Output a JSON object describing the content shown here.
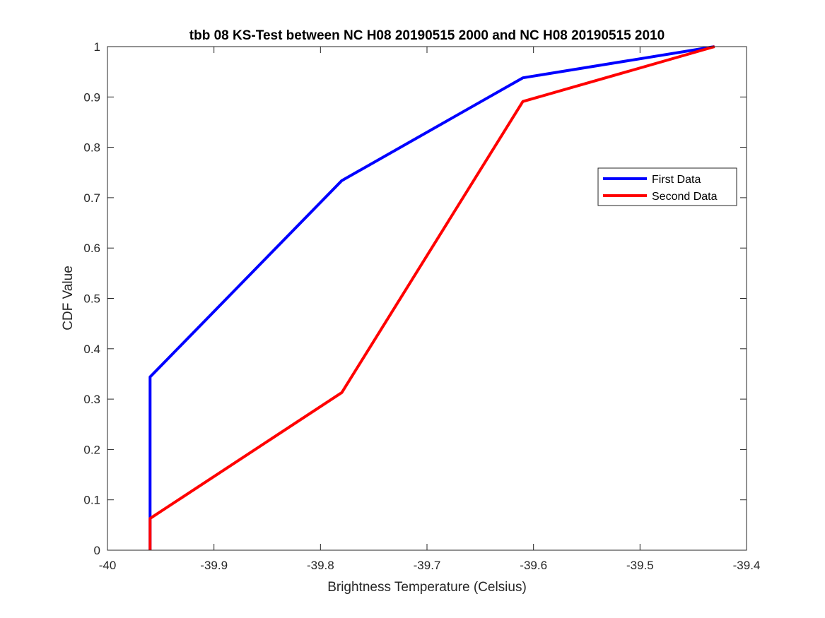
{
  "chart_data": {
    "type": "line",
    "title": "tbb 08 KS-Test between NC H08 20190515 2000 and NC H08 20190515 2010",
    "xlabel": "Brightness Temperature (Celsius)",
    "ylabel": "CDF Value",
    "xlim": [
      -40,
      -39.4
    ],
    "ylim": [
      0,
      1
    ],
    "xticks": [
      -40,
      -39.9,
      -39.8,
      -39.7,
      -39.6,
      -39.5,
      -39.4
    ],
    "xtick_labels": [
      "-40",
      "-39.9",
      "-39.8",
      "-39.7",
      "-39.6",
      "-39.5",
      "-39.4"
    ],
    "yticks": [
      0,
      0.1,
      0.2,
      0.3,
      0.4,
      0.5,
      0.6,
      0.7,
      0.8,
      0.9,
      1
    ],
    "ytick_labels": [
      "0",
      "0.1",
      "0.2",
      "0.3",
      "0.4",
      "0.5",
      "0.6",
      "0.7",
      "0.8",
      "0.9",
      "1"
    ],
    "grid": false,
    "legend_position": "right",
    "series": [
      {
        "name": "First Data",
        "color": "#0000ff",
        "x": [
          -39.96,
          -39.96,
          -39.78,
          -39.61,
          -39.43
        ],
        "y": [
          0,
          0.344,
          0.734,
          0.938,
          1.0
        ]
      },
      {
        "name": "Second Data",
        "color": "#ff0000",
        "x": [
          -39.96,
          -39.96,
          -39.78,
          -39.61,
          -39.43
        ],
        "y": [
          0,
          0.063,
          0.313,
          0.891,
          1.0
        ]
      }
    ]
  }
}
